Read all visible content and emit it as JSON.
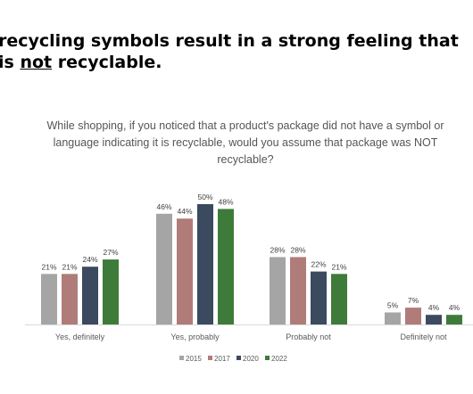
{
  "headline": {
    "line1": "recycling symbols result in a strong feeling that",
    "line2_pre": "is ",
    "line2_emph": "not",
    "line2_post": " recyclable."
  },
  "chart_data": {
    "type": "bar",
    "title": "While shopping, if you noticed that a product's package did not have a symbol or language indicating it is recyclable, would you assume that package was NOT recyclable?",
    "categories": [
      "Yes, definitely",
      "Yes, probably",
      "Probably not",
      "Definitely not"
    ],
    "series": [
      {
        "name": "2015",
        "color": "#a5a5a5",
        "values": [
          21,
          46,
          28,
          5
        ]
      },
      {
        "name": "2017",
        "color": "#b07c7a",
        "values": [
          21,
          44,
          28,
          7
        ]
      },
      {
        "name": "2020",
        "color": "#3b4a5f",
        "values": [
          24,
          50,
          22,
          4
        ]
      },
      {
        "name": "2022",
        "color": "#3e7b3a",
        "values": [
          27,
          48,
          21,
          4
        ]
      }
    ],
    "value_suffix": "%",
    "ylim": [
      0,
      50
    ],
    "grid": false,
    "legend": "bottom-center"
  }
}
